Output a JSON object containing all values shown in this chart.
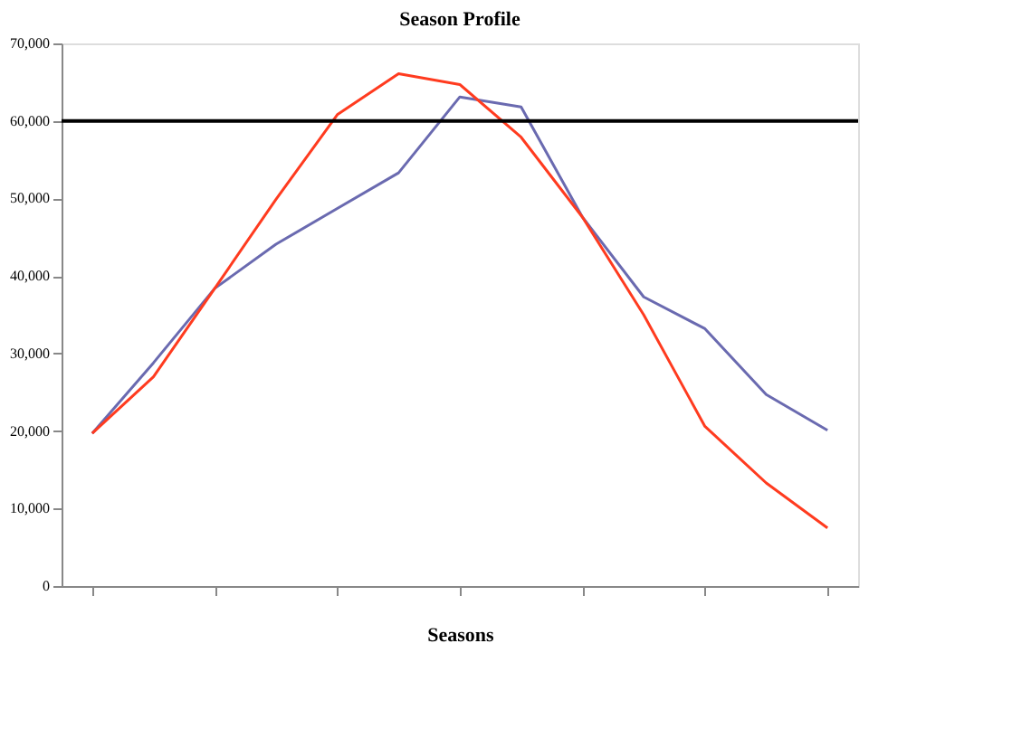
{
  "chart_data": {
    "type": "line",
    "title": "Season Profile",
    "xlabel": "Seasons",
    "categories": [
      null,
      null,
      null,
      null,
      null,
      null,
      null,
      null,
      null,
      null,
      null,
      null,
      null
    ],
    "series": [
      {
        "color": "#6a6ab0",
        "values": [
          19700,
          28800,
          38400,
          44100,
          48700,
          53300,
          63100,
          61800,
          47600,
          37300,
          33200,
          24700,
          20100
        ]
      },
      {
        "color": "#ff3b1f",
        "values": [
          19700,
          27000,
          38400,
          49900,
          60800,
          66100,
          64700,
          57900,
          47600,
          35000,
          20600,
          13300,
          7500
        ]
      }
    ],
    "ylim": [
      0,
      70000
    ],
    "yticks": [
      0,
      {
        "value": 10000,
        "label": "10,000"
      },
      {
        "value": 20000,
        "label": "20,000"
      },
      {
        "value": 30000,
        "label": "30,000"
      },
      {
        "value": 40000,
        "label": "40,000"
      },
      {
        "value": 50000,
        "label": "50,000"
      },
      {
        "value": 60000,
        "label": "60,000"
      },
      {
        "value": 70000,
        "label": "70,000"
      }
    ],
    "ref_lines": [
      {
        "axis": "y",
        "value": 60000,
        "color": "#000000"
      }
    ],
    "grid": false,
    "marker": "none",
    "line_style": "solid"
  }
}
